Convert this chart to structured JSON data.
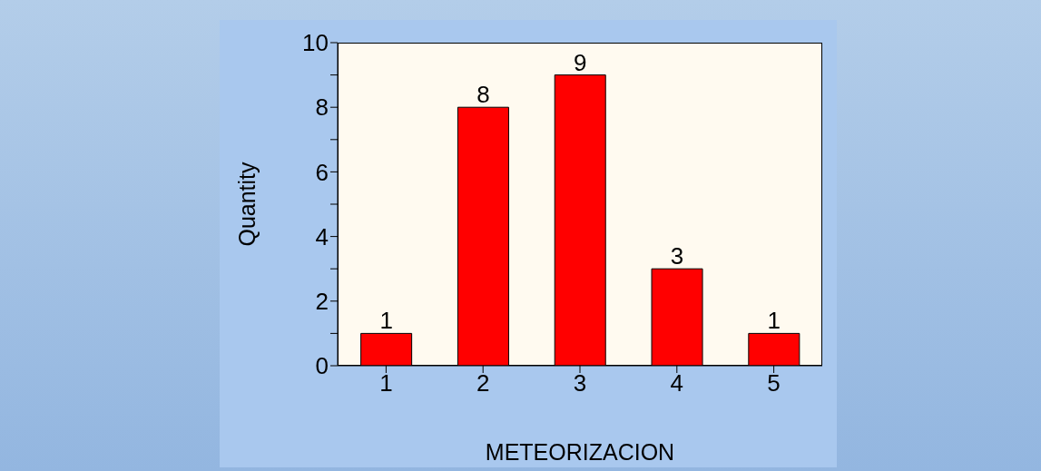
{
  "chart_data": {
    "type": "bar",
    "xlabel": "METEORIZACION",
    "ylabel": "Quantity",
    "categories": [
      "1",
      "2",
      "3",
      "4",
      "5"
    ],
    "values": [
      1,
      8,
      9,
      3,
      1
    ],
    "color": "#ff0000",
    "ylim": [
      0,
      10
    ],
    "yticks": [
      0,
      {
        "value": 1,
        "label": null
      },
      2,
      {
        "value": 3,
        "label": null
      },
      4,
      {
        "value": 5,
        "label": null
      },
      6,
      {
        "value": 7,
        "label": null
      },
      8,
      {
        "value": 9,
        "label": null
      },
      10
    ],
    "data_labels": true
  }
}
